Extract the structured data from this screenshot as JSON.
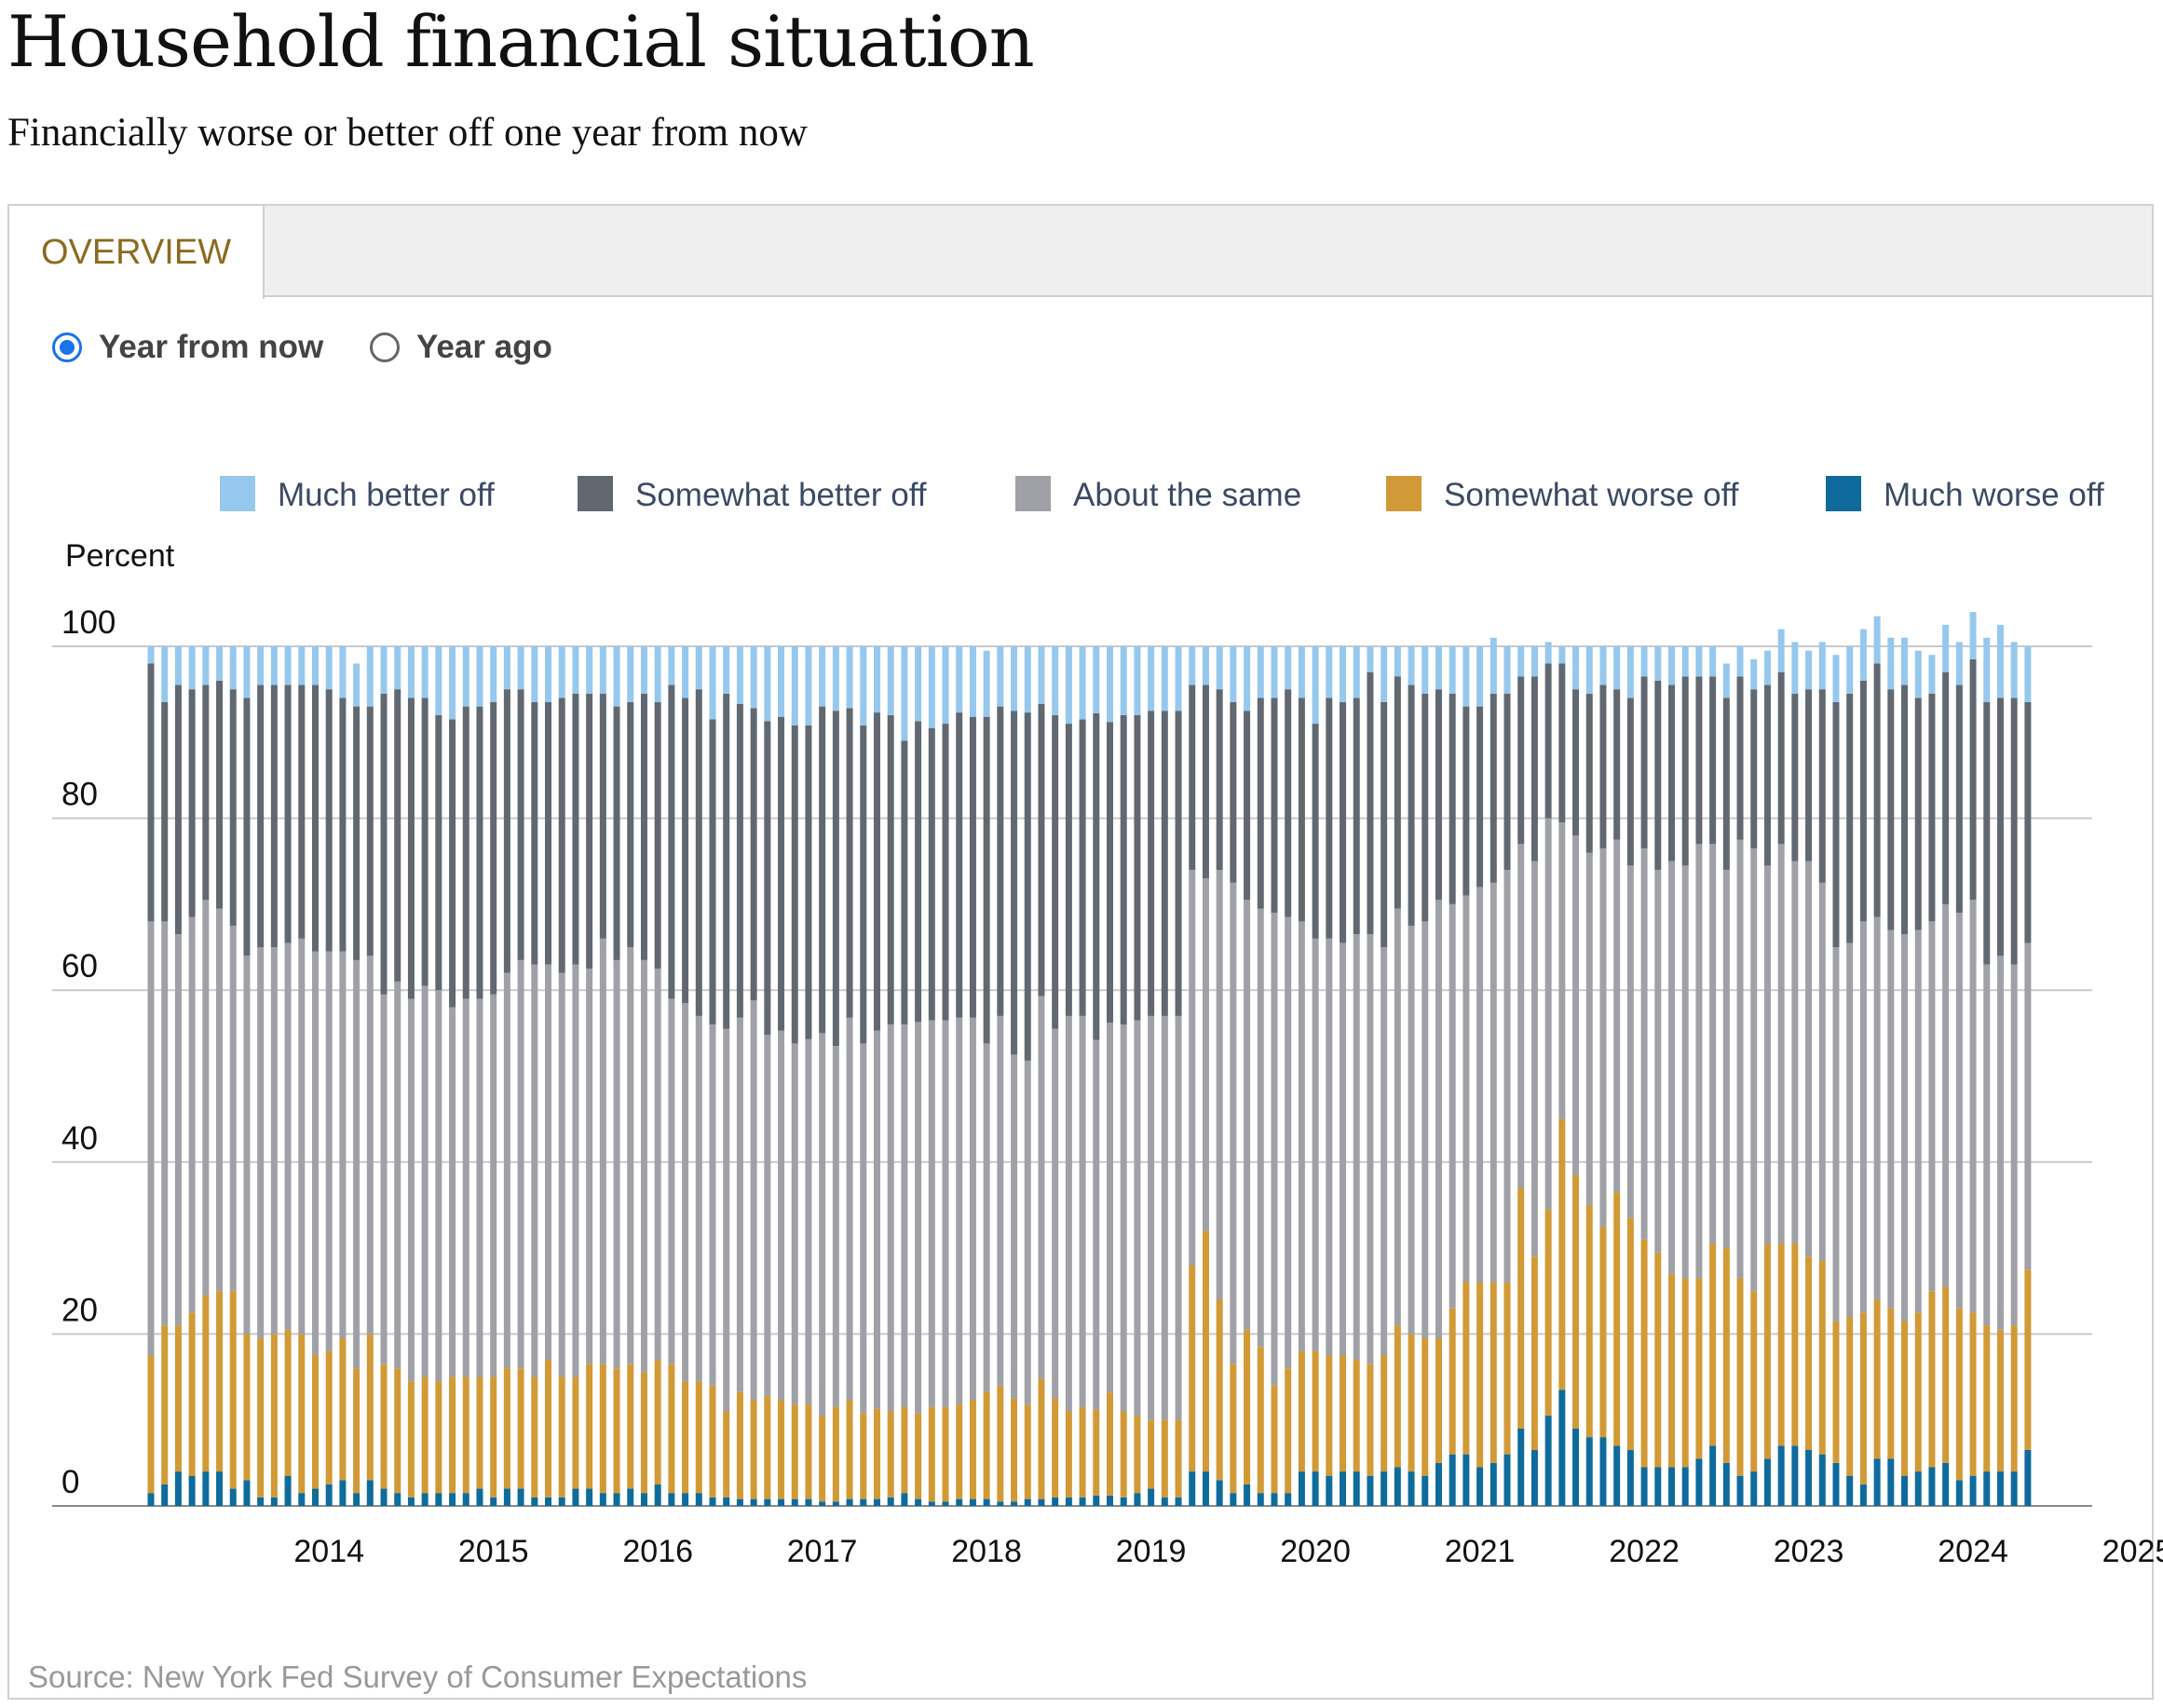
{
  "title": "Household financial situation",
  "subtitle": "Financially worse or better off one year from now",
  "tabs": [
    {
      "label": "OVERVIEW"
    }
  ],
  "radios": [
    {
      "label": "Year from now",
      "checked": true
    },
    {
      "label": "Year ago",
      "checked": false
    }
  ],
  "source": "Source: New York Fed Survey of Consumer Expectations",
  "chart_data": {
    "type": "bar",
    "stacked": true,
    "ylabel": "Percent",
    "ylim": [
      0,
      100
    ],
    "yticks": [
      0,
      20,
      40,
      60,
      80,
      100
    ],
    "xticks": [
      "2014",
      "2015",
      "2016",
      "2017",
      "2018",
      "2019",
      "2020",
      "2021",
      "2022",
      "2023",
      "2024",
      "2025"
    ],
    "grid": true,
    "legend_position": "top",
    "x_start": "2013-06",
    "x_end": "2025-02",
    "series": [
      {
        "name": "Much worse off",
        "color": "#0e6b9c",
        "values": [
          1.5,
          2.5,
          4.0,
          3.5,
          4.0,
          4.0,
          2.0,
          3.0,
          1.0,
          1.0,
          3.5,
          1.5,
          2.0,
          2.5,
          3.0,
          1.5,
          3.0,
          2.0,
          1.5,
          1.0,
          1.5,
          1.5,
          1.5,
          1.5,
          2.0,
          1.0,
          2.0,
          2.0,
          1.0,
          1.0,
          1.0,
          2.0,
          2.0,
          1.5,
          1.5,
          2.0,
          1.5,
          2.5,
          1.5,
          1.5,
          1.5,
          1.0,
          1.0,
          0.8,
          0.8,
          0.8,
          0.8,
          0.8,
          0.8,
          0.5,
          0.5,
          0.8,
          0.8,
          0.8,
          1.0,
          1.5,
          0.8,
          0.5,
          0.5,
          0.8,
          0.8,
          0.8,
          0.5,
          0.5,
          0.8,
          0.8,
          1.0,
          1.0,
          1.0,
          1.2,
          1.2,
          1.0,
          1.5,
          2.0,
          1.0,
          1.0,
          4.0,
          4.0,
          3.0,
          1.5,
          2.5,
          1.5,
          1.5,
          1.5,
          4.0,
          4.0,
          3.5,
          4.0,
          4.0,
          3.5,
          4.0,
          4.5,
          4.0,
          3.5,
          5.0,
          6.0,
          6.0,
          4.5,
          5.0,
          6.0,
          9.0,
          6.5,
          10.5,
          13.5,
          9.0,
          8.0,
          8.0,
          7.0,
          6.5,
          4.5,
          4.5,
          4.5,
          4.5,
          5.5,
          7.0,
          5.0,
          3.5,
          4.0,
          5.5,
          7.0,
          7.0,
          6.5,
          6.0,
          5.0,
          3.5,
          2.5,
          5.5,
          5.5,
          3.5,
          4.0,
          4.5,
          5.0,
          3.0,
          3.5,
          4.0,
          4.0,
          4.0,
          6.5
        ]
      },
      {
        "name": "Somewhat worse off",
        "color": "#d19a36",
        "values": [
          16.0,
          18.5,
          17.0,
          19.0,
          20.5,
          21.0,
          23.0,
          17.0,
          18.5,
          19.0,
          17.0,
          18.5,
          15.5,
          15.5,
          16.5,
          14.5,
          17.0,
          14.5,
          14.5,
          13.5,
          13.5,
          13.0,
          13.5,
          13.5,
          13.0,
          14.0,
          14.0,
          14.0,
          14.0,
          16.0,
          14.0,
          13.0,
          14.5,
          15.0,
          14.5,
          14.5,
          14.0,
          14.5,
          15.0,
          13.0,
          13.0,
          13.0,
          10.0,
          12.5,
          11.5,
          12.0,
          11.5,
          11.0,
          11.0,
          10.0,
          11.0,
          11.5,
          10.0,
          10.5,
          10.0,
          10.0,
          10.0,
          11.0,
          11.0,
          11.0,
          11.5,
          12.5,
          13.5,
          12.0,
          11.0,
          14.0,
          11.5,
          10.0,
          10.5,
          10.0,
          12.0,
          10.0,
          9.0,
          8.0,
          9.0,
          9.0,
          24.0,
          28.0,
          21.0,
          15.0,
          18.0,
          17.0,
          12.5,
          14.5,
          14.0,
          14.0,
          14.0,
          13.5,
          13.0,
          13.0,
          13.5,
          16.5,
          16.0,
          16.0,
          14.5,
          17.0,
          20.0,
          21.5,
          21.0,
          20.0,
          28.0,
          22.5,
          24.0,
          31.5,
          29.5,
          27.0,
          24.5,
          29.5,
          27.0,
          26.5,
          25.0,
          22.5,
          22.0,
          21.0,
          23.5,
          25.0,
          23.0,
          21.0,
          25.0,
          23.5,
          23.5,
          22.5,
          22.5,
          16.5,
          18.5,
          20.0,
          18.5,
          17.5,
          18.0,
          18.5,
          20.5,
          20.5,
          20.0,
          19.0,
          17.0,
          16.5,
          17.0,
          21.0
        ]
      },
      {
        "name": "About the same",
        "color": "#9fa1a6",
        "values": [
          50.5,
          47.0,
          45.5,
          46.0,
          46.0,
          44.5,
          42.5,
          44.0,
          45.5,
          45.0,
          45.0,
          46.0,
          47.0,
          46.5,
          45.0,
          47.5,
          44.0,
          43.0,
          45.0,
          44.5,
          45.5,
          45.5,
          43.0,
          44.0,
          44.0,
          44.5,
          46.0,
          47.5,
          48.0,
          46.0,
          47.0,
          48.0,
          46.0,
          49.5,
          47.5,
          48.5,
          48.0,
          45.5,
          42.5,
          44.0,
          42.5,
          42.0,
          44.5,
          43.5,
          46.5,
          42.0,
          43.0,
          42.0,
          42.5,
          44.5,
          42.0,
          44.5,
          43.0,
          44.0,
          45.0,
          44.5,
          45.5,
          45.0,
          45.0,
          45.0,
          44.5,
          40.5,
          43.0,
          40.0,
          40.0,
          44.5,
          43.0,
          46.0,
          45.5,
          43.0,
          43.0,
          45.0,
          46.0,
          47.0,
          47.0,
          47.0,
          46.0,
          41.0,
          50.0,
          56.0,
          50.0,
          51.0,
          55.0,
          52.5,
          50.0,
          48.0,
          48.5,
          48.0,
          49.5,
          50.0,
          47.5,
          48.5,
          47.5,
          48.5,
          51.0,
          47.0,
          45.0,
          46.0,
          46.5,
          48.0,
          40.0,
          46.0,
          45.5,
          34.5,
          39.5,
          41.0,
          44.0,
          41.0,
          41.0,
          45.5,
          44.5,
          48.0,
          48.0,
          50.5,
          46.5,
          44.0,
          51.0,
          51.5,
          44.0,
          46.5,
          44.5,
          46.0,
          44.0,
          43.5,
          43.5,
          45.5,
          44.5,
          44.0,
          45.0,
          44.5,
          43.0,
          44.5,
          46.0,
          48.0,
          42.0,
          43.5,
          42.0,
          38.0
        ]
      },
      {
        "name": "Somewhat better off",
        "color": "#616870",
        "values": [
          30.0,
          25.5,
          29.0,
          26.5,
          25.0,
          26.5,
          27.5,
          30.0,
          30.5,
          30.5,
          30.0,
          29.5,
          31.0,
          30.5,
          29.5,
          29.5,
          29.0,
          35.0,
          34.0,
          35.0,
          33.5,
          32.0,
          33.5,
          34.0,
          34.0,
          34.0,
          33.0,
          31.5,
          30.5,
          30.5,
          32.0,
          31.5,
          32.0,
          28.5,
          29.5,
          28.5,
          31.0,
          31.0,
          36.5,
          35.5,
          38.0,
          35.5,
          39.0,
          36.5,
          34.0,
          36.5,
          36.5,
          37.0,
          36.5,
          38.0,
          39.0,
          36.0,
          37.0,
          37.0,
          36.0,
          33.0,
          35.0,
          34.0,
          34.5,
          35.5,
          35.0,
          38.0,
          36.0,
          40.0,
          40.5,
          34.0,
          36.5,
          34.0,
          34.5,
          38.0,
          35.0,
          36.0,
          35.5,
          35.5,
          35.5,
          35.5,
          21.5,
          22.5,
          21.0,
          21.0,
          22.0,
          24.5,
          25.0,
          26.5,
          26.0,
          25.0,
          28.0,
          28.0,
          27.5,
          30.5,
          28.5,
          27.0,
          28.0,
          26.5,
          24.5,
          24.5,
          22.0,
          21.0,
          22.0,
          20.5,
          19.5,
          21.5,
          18.0,
          18.5,
          17.0,
          18.5,
          19.0,
          17.5,
          19.5,
          20.0,
          22.0,
          20.5,
          22.0,
          19.5,
          19.5,
          20.0,
          19.0,
          18.5,
          21.0,
          20.0,
          19.5,
          20.0,
          22.5,
          28.5,
          29.0,
          28.0,
          29.5,
          28.0,
          29.0,
          27.0,
          26.5,
          27.0,
          26.5,
          28.0,
          30.5,
          30.0,
          31.0,
          28.0
        ]
      },
      {
        "name": "Much better off",
        "color": "#96c8ed",
        "values": [
          2.0,
          6.5,
          4.5,
          5.0,
          4.5,
          4.0,
          5.0,
          6.0,
          4.5,
          4.5,
          4.5,
          4.5,
          4.5,
          5.0,
          6.0,
          5.0,
          7.0,
          5.5,
          5.0,
          6.0,
          6.0,
          8.0,
          8.5,
          7.0,
          7.0,
          6.5,
          5.0,
          5.0,
          6.5,
          6.5,
          6.0,
          5.5,
          5.5,
          5.5,
          7.0,
          6.5,
          5.5,
          6.5,
          4.5,
          6.0,
          5.0,
          8.5,
          5.5,
          6.7,
          7.2,
          8.7,
          8.2,
          9.2,
          9.2,
          7.0,
          7.5,
          7.2,
          9.2,
          7.7,
          8.0,
          11.0,
          8.7,
          9.5,
          9.0,
          7.7,
          8.2,
          7.7,
          7.0,
          7.5,
          7.7,
          6.7,
          8.0,
          9.0,
          8.5,
          7.8,
          8.8,
          8.0,
          8.0,
          7.5,
          7.5,
          7.5,
          4.5,
          4.5,
          5.0,
          6.5,
          7.5,
          6.0,
          6.0,
          5.0,
          6.0,
          9.0,
          6.0,
          6.5,
          6.0,
          3.0,
          6.5,
          3.5,
          4.5,
          5.5,
          5.0,
          5.5,
          7.0,
          7.0,
          6.5,
          5.5,
          3.5,
          3.5,
          2.5,
          2.0,
          5.0,
          5.5,
          4.5,
          5.0,
          6.0,
          3.5,
          4.0,
          4.5,
          3.5,
          3.5,
          3.5,
          4.0,
          3.5,
          3.5,
          4.0,
          5.0,
          6.0,
          4.5,
          5.5,
          5.5,
          5.5,
          6.0,
          5.5,
          6.0,
          5.5,
          5.5,
          4.5,
          5.5,
          5.0,
          5.5,
          7.5,
          8.5,
          6.5,
          6.5
        ]
      }
    ]
  }
}
